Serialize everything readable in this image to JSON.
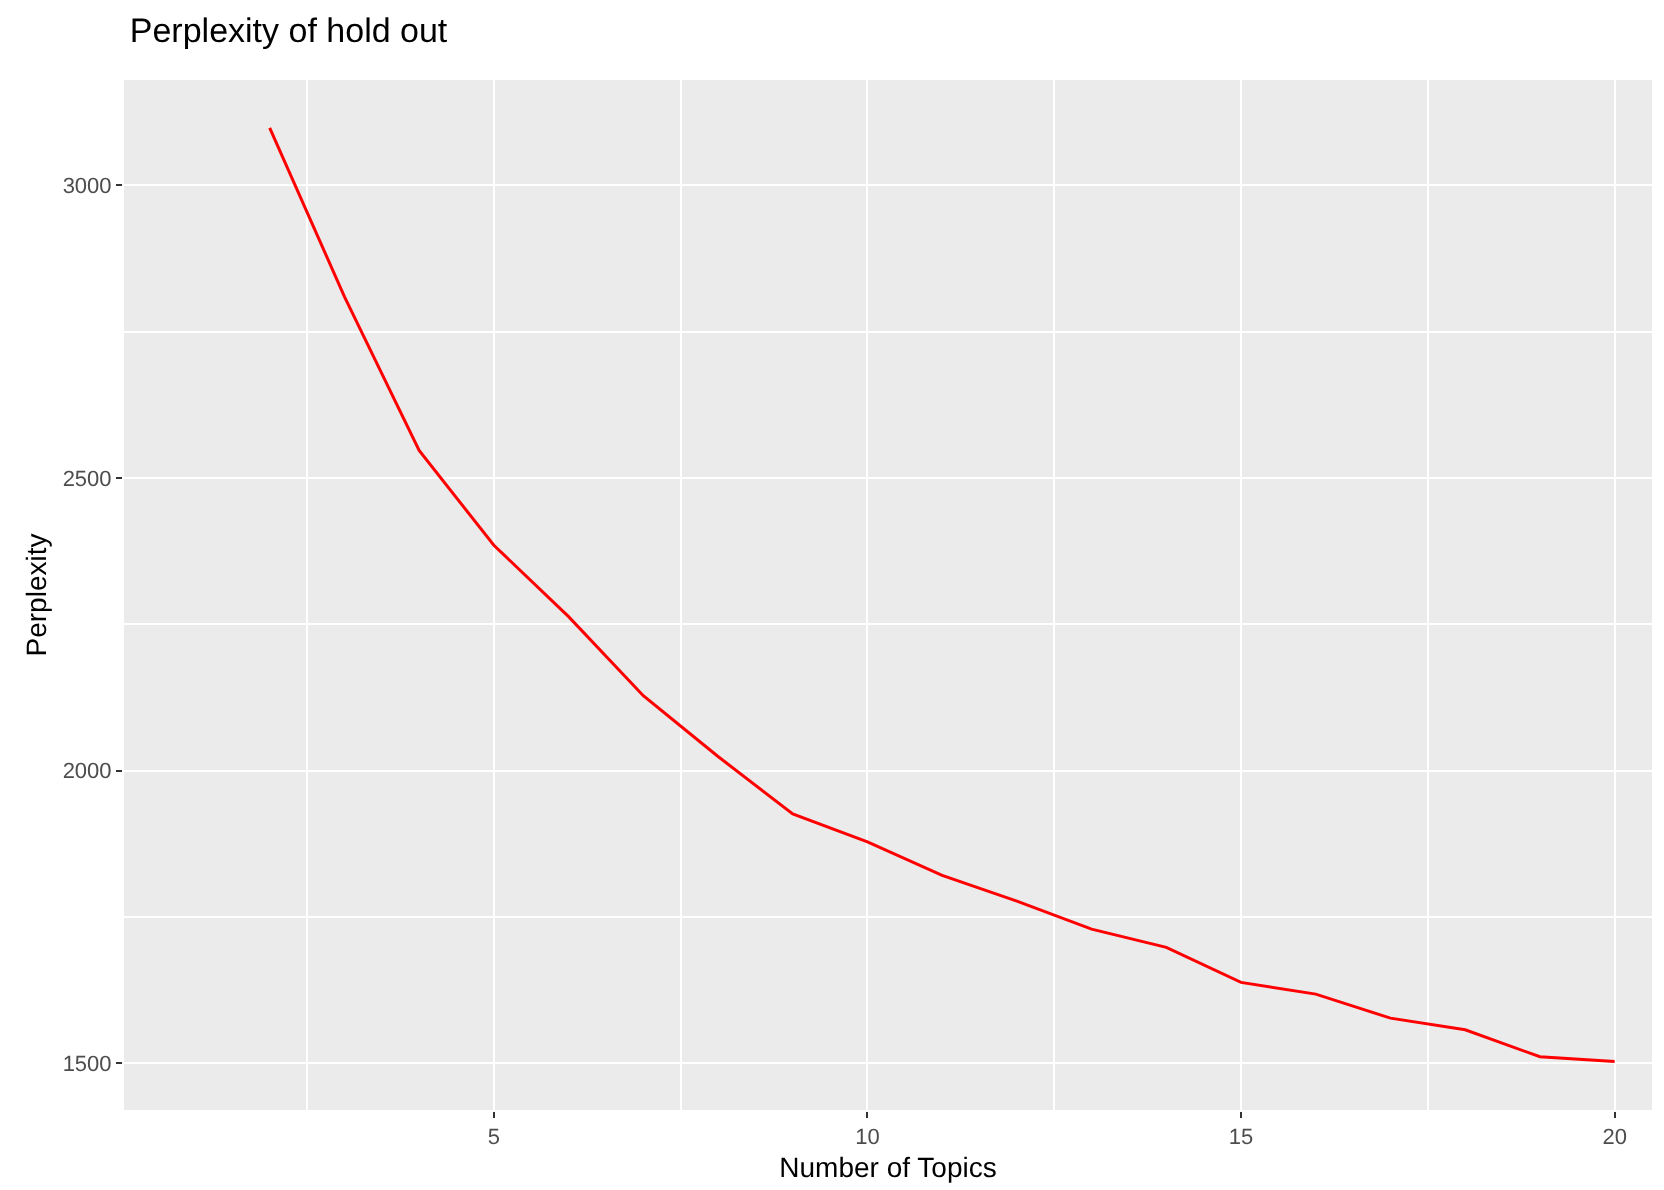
{
  "chart_data": {
    "type": "line",
    "title": "Perplexity of hold out",
    "xlabel": "Number of Topics",
    "ylabel": "Perplexity",
    "x": [
      2,
      3,
      4,
      5,
      6,
      7,
      8,
      9,
      10,
      11,
      12,
      13,
      14,
      15,
      16,
      17,
      18,
      19,
      20
    ],
    "series": [
      {
        "color": "#ff0000",
        "values": [
          3098,
          2810,
          2547,
          2385,
          2263,
          2128,
          2024,
          1926,
          1878,
          1821,
          1777,
          1729,
          1698,
          1638,
          1618,
          1577,
          1557,
          1511,
          1503
        ]
      }
    ],
    "xlim": [
      0.05,
      20.5
    ],
    "xticks": [
      {
        "value": 2.5,
        "label": null
      },
      5,
      {
        "value": 7.5,
        "label": null
      },
      10,
      {
        "value": 12.5,
        "label": null
      },
      15,
      {
        "value": 17.5,
        "label": null
      },
      20
    ],
    "ylim": [
      1420,
      3180
    ],
    "yticks": [
      1500,
      {
        "value": 1750,
        "label": null
      },
      2000,
      {
        "value": 2250,
        "label": null
      },
      2500,
      {
        "value": 2750,
        "label": null
      },
      3000
    ],
    "grid": true,
    "marker": "none",
    "line_style": "solid"
  }
}
